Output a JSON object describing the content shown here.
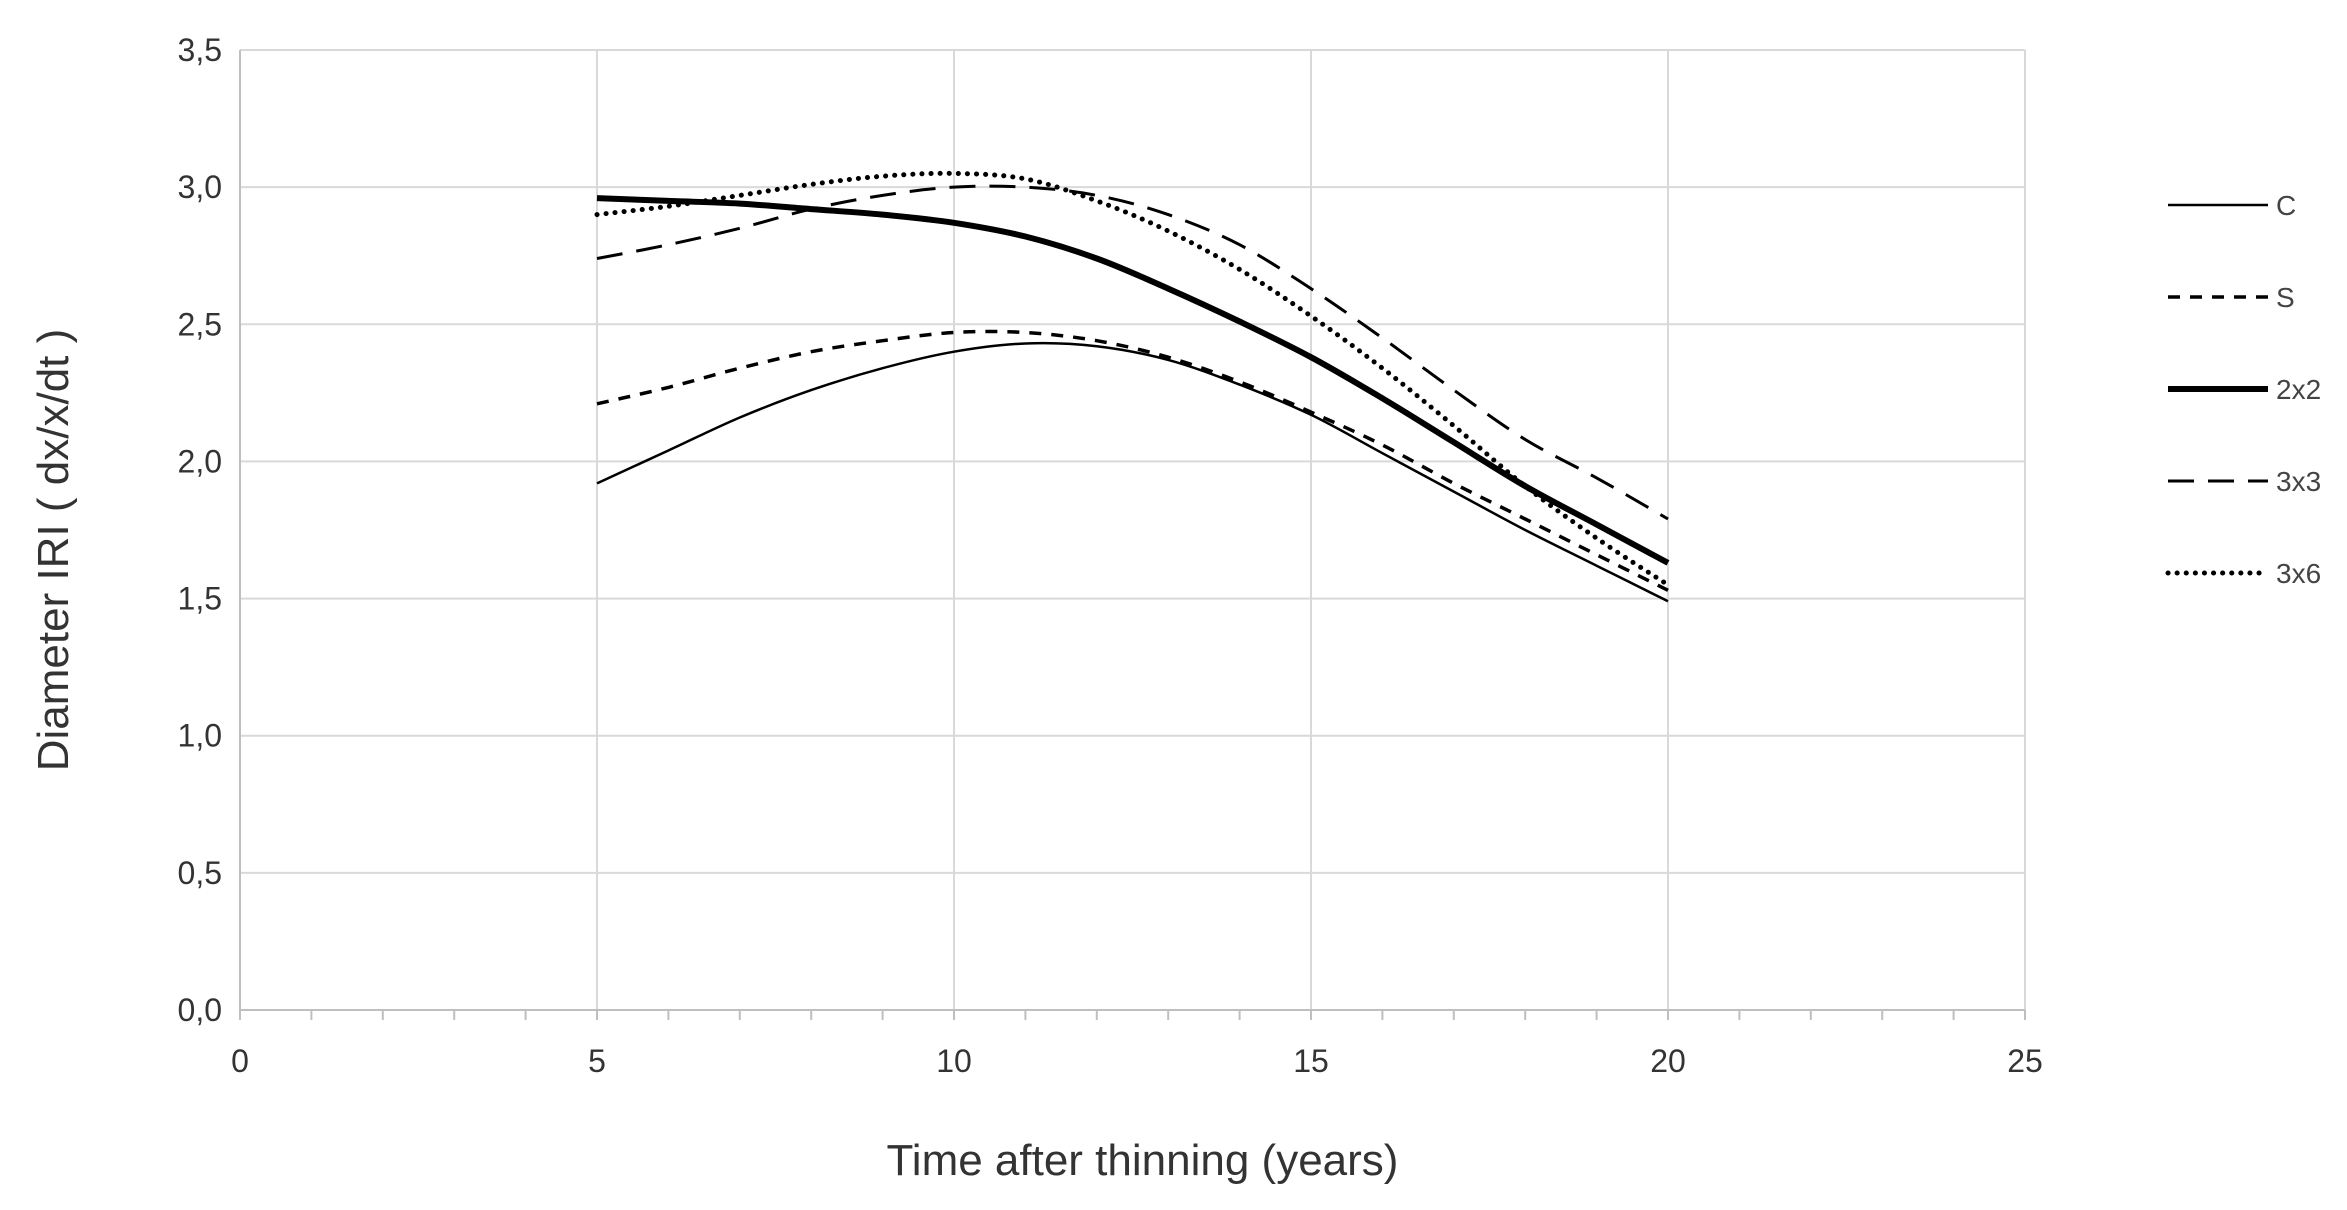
{
  "chart_data": {
    "type": "line",
    "xlabel": "Time after thinning (years)",
    "ylabel": "Diameter IRI ( dx/x/dt )",
    "xlim": [
      0,
      25
    ],
    "ylim": [
      0,
      3.5
    ],
    "x_ticks": [
      "0",
      "5",
      "10",
      "15",
      "20",
      "25"
    ],
    "y_ticks": [
      "0,0",
      "0,5",
      "1,0",
      "1,5",
      "2,0",
      "2,5",
      "3,0",
      "3,5"
    ],
    "grid": true,
    "legend_position": "right",
    "x": [
      5,
      6,
      7,
      8,
      9,
      10,
      11,
      12,
      13,
      14,
      15,
      16,
      17,
      18,
      19,
      20
    ],
    "series": [
      {
        "name": "C",
        "style": "solid-thin",
        "values": [
          1.92,
          2.04,
          2.16,
          2.26,
          2.34,
          2.4,
          2.43,
          2.42,
          2.37,
          2.28,
          2.17,
          2.03,
          1.89,
          1.75,
          1.62,
          1.49
        ]
      },
      {
        "name": "S",
        "style": "dashed-short",
        "values": [
          2.21,
          2.27,
          2.34,
          2.4,
          2.44,
          2.47,
          2.47,
          2.44,
          2.38,
          2.29,
          2.18,
          2.06,
          1.92,
          1.79,
          1.66,
          1.53
        ]
      },
      {
        "name": "2x2",
        "style": "solid-thick",
        "values": [
          2.96,
          2.95,
          2.94,
          2.92,
          2.9,
          2.87,
          2.82,
          2.74,
          2.63,
          2.51,
          2.38,
          2.23,
          2.07,
          1.91,
          1.77,
          1.63
        ]
      },
      {
        "name": "3x3",
        "style": "dashed-long",
        "values": [
          2.74,
          2.79,
          2.85,
          2.92,
          2.97,
          3.0,
          3.0,
          2.97,
          2.9,
          2.79,
          2.63,
          2.45,
          2.26,
          2.08,
          1.94,
          1.79
        ]
      },
      {
        "name": "3x6",
        "style": "dotted",
        "values": [
          2.9,
          2.93,
          2.97,
          3.01,
          3.04,
          3.05,
          3.03,
          2.95,
          2.84,
          2.7,
          2.53,
          2.34,
          2.13,
          1.91,
          1.72,
          1.55
        ]
      }
    ]
  }
}
